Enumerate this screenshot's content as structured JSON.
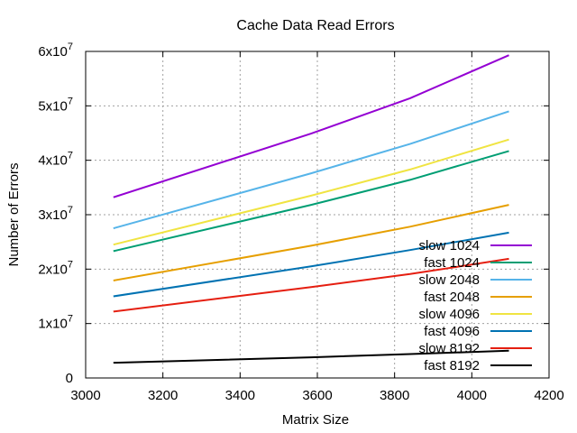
{
  "chart_data": {
    "type": "line",
    "title": "Cache Data Read Errors",
    "xlabel": "Matrix Size",
    "ylabel": "Number of Errors",
    "xlim": [
      3000,
      4200
    ],
    "ylim": [
      0,
      60000000
    ],
    "x_ticks": [
      3000,
      3200,
      3400,
      3600,
      3800,
      4000,
      4200
    ],
    "x_tick_labels": [
      "3000",
      "3200",
      "3400",
      "3600",
      "3800",
      "4000",
      "4200"
    ],
    "y_ticks": [
      {
        "value": 0,
        "mantissa": "0",
        "exponent": ""
      },
      {
        "value": 10000000,
        "mantissa": "1x10",
        "exponent": "7"
      },
      {
        "value": 20000000,
        "mantissa": "2x10",
        "exponent": "7"
      },
      {
        "value": 30000000,
        "mantissa": "3x10",
        "exponent": "7"
      },
      {
        "value": 40000000,
        "mantissa": "4x10",
        "exponent": "7"
      },
      {
        "value": 50000000,
        "mantissa": "5x10",
        "exponent": "7"
      },
      {
        "value": 60000000,
        "mantissa": "6x10",
        "exponent": "7"
      }
    ],
    "grid": true,
    "legend_position": "bottom-right",
    "series": [
      {
        "name": "slow 1024",
        "color": "#9400d3",
        "x": [
          3072,
          3584,
          3840,
          4096
        ],
        "y": [
          33200000,
          44900000,
          51400000,
          59300000
        ]
      },
      {
        "name": "fast 1024",
        "color": "#009e73",
        "x": [
          3072,
          3584,
          3840,
          4096
        ],
        "y": [
          23300000,
          31800000,
          36400000,
          41700000
        ]
      },
      {
        "name": "slow 2048",
        "color": "#56b4e9",
        "x": [
          3072,
          3584,
          3840,
          4096
        ],
        "y": [
          27500000,
          37600000,
          43000000,
          49000000
        ]
      },
      {
        "name": "fast 2048",
        "color": "#e69f00",
        "x": [
          3072,
          3584,
          3840,
          4096
        ],
        "y": [
          17900000,
          24300000,
          27800000,
          31800000
        ]
      },
      {
        "name": "slow 4096",
        "color": "#f0e442",
        "x": [
          3072,
          3584,
          3840,
          4096
        ],
        "y": [
          24500000,
          33500000,
          38300000,
          43800000
        ]
      },
      {
        "name": "fast 4096",
        "color": "#0072b2",
        "x": [
          3072,
          3584,
          3840,
          4096
        ],
        "y": [
          15000000,
          20500000,
          23500000,
          26700000
        ]
      },
      {
        "name": "slow 8192",
        "color": "#e51e10",
        "x": [
          3072,
          3584,
          3840,
          4096
        ],
        "y": [
          12200000,
          16700000,
          19100000,
          21900000
        ]
      },
      {
        "name": "fast 8192",
        "color": "#000000",
        "x": [
          3072,
          3584,
          3840,
          4096
        ],
        "y": [
          2800000,
          3800000,
          4400000,
          5000000
        ]
      }
    ]
  }
}
